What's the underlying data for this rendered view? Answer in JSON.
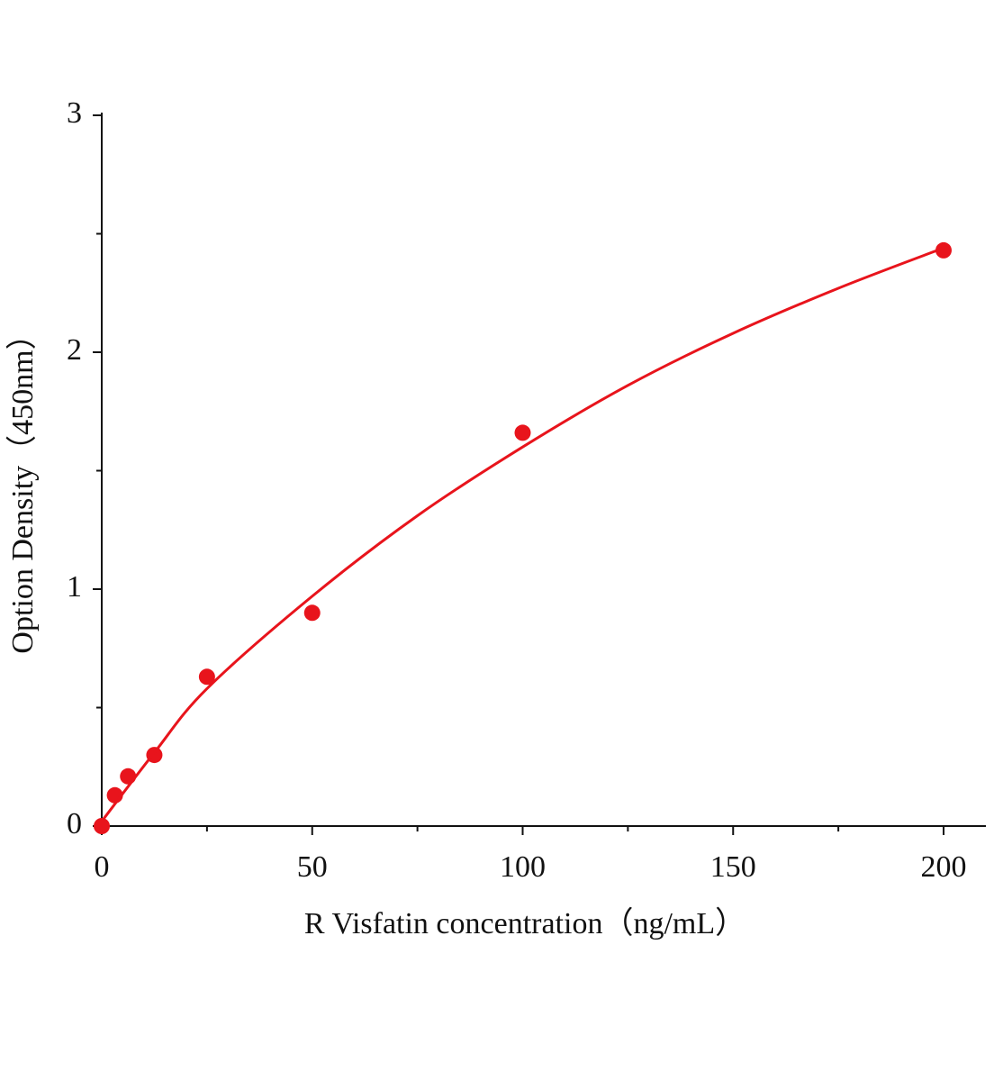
{
  "chart_data": {
    "type": "scatter",
    "x_label": "R Visfatin  concentration（ng/mL）",
    "y_label": "Option Density（450nm）",
    "xlim": [
      0,
      210
    ],
    "ylim": [
      0,
      3
    ],
    "xticks": [
      0,
      50,
      100,
      150,
      200
    ],
    "yticks": [
      0,
      1,
      2,
      3
    ],
    "x_minor_ticks": [
      25,
      75,
      125,
      175
    ],
    "y_minor_ticks": [
      0.5,
      1.5,
      2.5
    ],
    "series": [
      {
        "type": "scatter",
        "color": "#e8141c",
        "x": [
          0,
          3.125,
          6.25,
          12.5,
          25,
          50,
          100,
          200
        ],
        "values": [
          0,
          0.13,
          0.21,
          0.3,
          0.63,
          0.9,
          1.66,
          2.43
        ]
      },
      {
        "type": "line",
        "color": "#e8141c",
        "x": [
          0,
          12.5,
          25,
          50,
          75,
          100,
          125,
          150,
          175,
          200
        ],
        "values": [
          0.02,
          0.31,
          0.58,
          0.97,
          1.31,
          1.6,
          1.86,
          2.08,
          2.27,
          2.44
        ]
      }
    ]
  }
}
